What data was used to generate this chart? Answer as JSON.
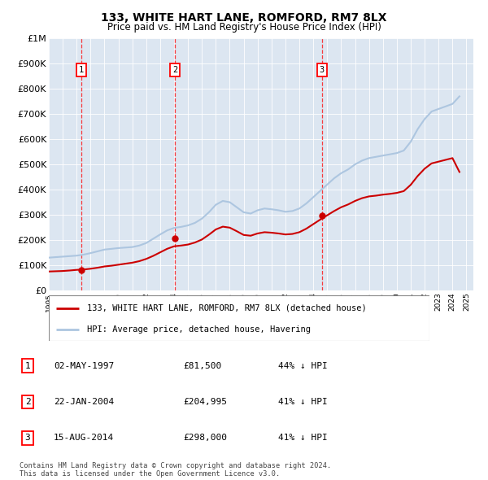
{
  "title": "133, WHITE HART LANE, ROMFORD, RM7 8LX",
  "subtitle": "Price paid vs. HM Land Registry's House Price Index (HPI)",
  "ylim": [
    0,
    1000000
  ],
  "yticks": [
    0,
    100000,
    200000,
    300000,
    400000,
    500000,
    600000,
    700000,
    800000,
    900000,
    1000000
  ],
  "ytick_labels": [
    "£0",
    "£100K",
    "£200K",
    "£300K",
    "£400K",
    "£500K",
    "£600K",
    "£700K",
    "£800K",
    "£900K",
    "£1M"
  ],
  "plot_bg": "#dce6f1",
  "hpi_color": "#adc6e0",
  "price_color": "#cc0000",
  "sale_dates": [
    1997.33,
    2004.06,
    2014.62
  ],
  "sale_prices": [
    81500,
    204995,
    298000
  ],
  "sale_labels": [
    "1",
    "2",
    "3"
  ],
  "legend_price_label": "133, WHITE HART LANE, ROMFORD, RM7 8LX (detached house)",
  "legend_hpi_label": "HPI: Average price, detached house, Havering",
  "table_rows": [
    [
      "1",
      "02-MAY-1997",
      "£81,500",
      "44% ↓ HPI"
    ],
    [
      "2",
      "22-JAN-2004",
      "£204,995",
      "41% ↓ HPI"
    ],
    [
      "3",
      "15-AUG-2014",
      "£298,000",
      "41% ↓ HPI"
    ]
  ],
  "footer": "Contains HM Land Registry data © Crown copyright and database right 2024.\nThis data is licensed under the Open Government Licence v3.0.",
  "hpi_x": [
    1995,
    1995.5,
    1996,
    1996.5,
    1997,
    1997.5,
    1998,
    1998.5,
    1999,
    1999.5,
    2000,
    2000.5,
    2001,
    2001.5,
    2002,
    2002.5,
    2003,
    2003.5,
    2004,
    2004.5,
    2005,
    2005.5,
    2006,
    2006.5,
    2007,
    2007.5,
    2008,
    2008.5,
    2009,
    2009.5,
    2010,
    2010.5,
    2011,
    2011.5,
    2012,
    2012.5,
    2013,
    2013.5,
    2014,
    2014.5,
    2015,
    2015.5,
    2016,
    2016.5,
    2017,
    2017.5,
    2018,
    2018.5,
    2019,
    2019.5,
    2020,
    2020.5,
    2021,
    2021.5,
    2022,
    2022.5,
    2023,
    2023.5,
    2024,
    2024.5
  ],
  "hpi_y": [
    130000,
    132000,
    134000,
    136000,
    138000,
    142000,
    148000,
    155000,
    162000,
    165000,
    168000,
    170000,
    172000,
    178000,
    188000,
    205000,
    222000,
    238000,
    248000,
    252000,
    258000,
    268000,
    285000,
    310000,
    340000,
    355000,
    350000,
    330000,
    310000,
    305000,
    318000,
    325000,
    322000,
    318000,
    312000,
    315000,
    325000,
    345000,
    370000,
    395000,
    420000,
    445000,
    465000,
    480000,
    500000,
    515000,
    525000,
    530000,
    535000,
    540000,
    545000,
    555000,
    590000,
    640000,
    680000,
    710000,
    720000,
    730000,
    740000,
    770000
  ],
  "price_x": [
    1995,
    1995.5,
    1996,
    1996.5,
    1997,
    1997.5,
    1998,
    1998.5,
    1999,
    1999.5,
    2000,
    2000.5,
    2001,
    2001.5,
    2002,
    2002.5,
    2003,
    2003.5,
    2004,
    2004.5,
    2005,
    2005.5,
    2006,
    2006.5,
    2007,
    2007.5,
    2008,
    2008.5,
    2009,
    2009.5,
    2010,
    2010.5,
    2011,
    2011.5,
    2012,
    2012.5,
    2013,
    2013.5,
    2014,
    2014.5,
    2015,
    2015.5,
    2016,
    2016.5,
    2017,
    2017.5,
    2018,
    2018.5,
    2019,
    2019.5,
    2020,
    2020.5,
    2021,
    2021.5,
    2022,
    2022.5,
    2023,
    2023.5,
    2024,
    2024.5
  ],
  "price_y": [
    75000,
    76000,
    77000,
    79000,
    81500,
    83000,
    86000,
    90000,
    95000,
    98000,
    102000,
    106000,
    110000,
    116000,
    125000,
    137000,
    151000,
    165000,
    175000,
    178000,
    182000,
    190000,
    202000,
    221000,
    242000,
    253000,
    249000,
    235000,
    220000,
    217000,
    226000,
    231000,
    229000,
    226000,
    222000,
    224000,
    231000,
    245000,
    263000,
    281000,
    298000,
    315000,
    330000,
    341000,
    355000,
    366000,
    373000,
    376000,
    380000,
    383000,
    387000,
    394000,
    419000,
    454000,
    483000,
    504000,
    511000,
    518000,
    525000,
    470000
  ]
}
